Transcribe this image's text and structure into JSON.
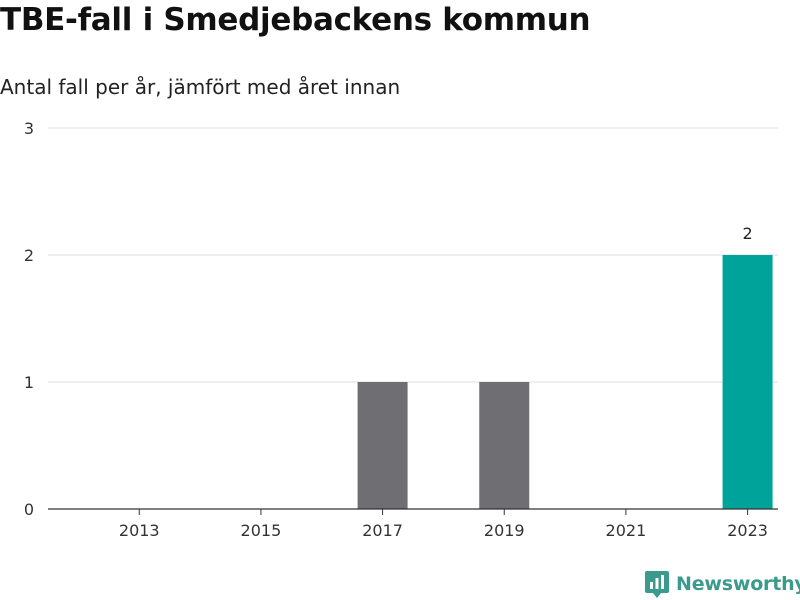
{
  "header": {
    "title": "TBE-fall i Smedjebackens kommun",
    "subtitle": "Antal fall per år, jämfört med året innan"
  },
  "brand": {
    "name": "Newsworthy",
    "icon": "newsworthy-logo-icon",
    "color": "#3a9a8c"
  },
  "chart_data": {
    "type": "bar",
    "categories": [
      "2012",
      "2013",
      "2014",
      "2015",
      "2016",
      "2017",
      "2018",
      "2019",
      "2020",
      "2021",
      "2022",
      "2023"
    ],
    "values": [
      0,
      0,
      0,
      0,
      0,
      1,
      0,
      1,
      0,
      0,
      0,
      2
    ],
    "x_tick_labels": [
      "2013",
      "2015",
      "2017",
      "2019",
      "2021",
      "2023"
    ],
    "y_ticks": [
      "0",
      "1",
      "2",
      "3"
    ],
    "ylim": [
      0,
      3
    ],
    "grid": true,
    "highlight_category": "2023",
    "data_labels": [
      {
        "category": "2023",
        "label": "2"
      }
    ],
    "colors": {
      "default": "#6e6e73",
      "highlight": "#00a39a",
      "grid": "#dddddd",
      "axis": "#333333"
    }
  }
}
